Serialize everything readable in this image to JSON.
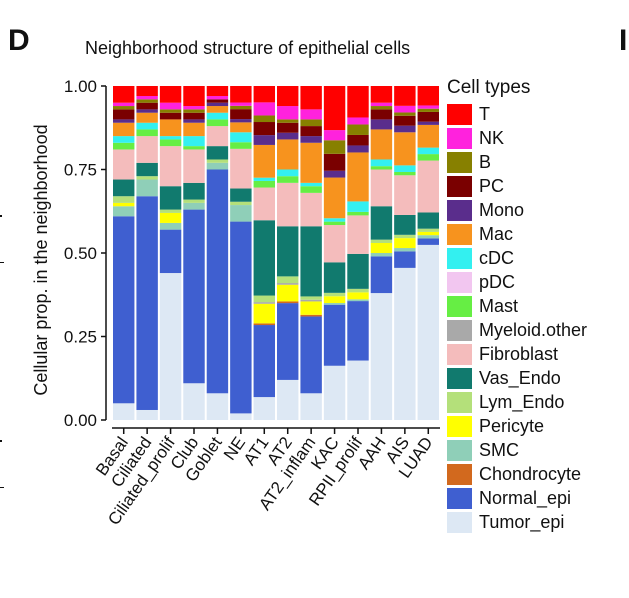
{
  "panel_label": "D",
  "next_panel_label": "I",
  "chart_data": {
    "type": "bar",
    "stacked": true,
    "title": "Neighborhood structure of epithelial cells",
    "xlabel": "",
    "ylabel": "Cellular prop. in the neighborhood",
    "ylim": [
      0,
      1
    ],
    "yticks": [
      "0.00",
      "0.25",
      "0.50",
      "0.75",
      "1.00"
    ],
    "legend_title": "Cell types",
    "legend_position": "right",
    "categories": [
      "Basal",
      "Ciliated",
      "Ciliated_prolif",
      "Club",
      "Goblet",
      "NE",
      "AT1",
      "AT2",
      "AT2_inflam",
      "KAC",
      "RPII_prolif",
      "AAH",
      "AIS",
      "LUAD"
    ],
    "series": [
      {
        "name": "Tumor_epi",
        "color": "#dde8f4",
        "values": [
          0.05,
          0.03,
          0.44,
          0.11,
          0.08,
          0.02,
          0.07,
          0.12,
          0.08,
          0.16,
          0.17,
          0.38,
          0.46,
          0.54
        ]
      },
      {
        "name": "Normal_epi",
        "color": "#3f5fd0",
        "values": [
          0.56,
          0.64,
          0.13,
          0.52,
          0.67,
          0.58,
          0.22,
          0.23,
          0.23,
          0.18,
          0.17,
          0.11,
          0.05,
          0.02
        ]
      },
      {
        "name": "Chondrocyte",
        "color": "#d2691e",
        "values": [
          0.0,
          0.0,
          0.0,
          0.0,
          0.0,
          0.0,
          0.005,
          0.005,
          0.005,
          0.0,
          0.0,
          0.0,
          0.0,
          0.0
        ]
      },
      {
        "name": "SMC",
        "color": "#8fcfb8",
        "values": [
          0.03,
          0.05,
          0.02,
          0.02,
          0.02,
          0.05,
          0.0,
          0.0,
          0.0,
          0.005,
          0.005,
          0.01,
          0.01,
          0.01
        ]
      },
      {
        "name": "Pericyte",
        "color": "#ffff00",
        "values": [
          0.01,
          0.0,
          0.03,
          0.0,
          0.0,
          0.0,
          0.06,
          0.05,
          0.04,
          0.02,
          0.02,
          0.03,
          0.03,
          0.01
        ]
      },
      {
        "name": "Myeloid.other",
        "color": "#a9a9a9",
        "values": [
          0.0,
          0.0,
          0.0,
          0.0,
          0.0,
          0.0,
          0.005,
          0.005,
          0.005,
          0.0,
          0.0,
          0.0,
          0.0,
          0.0
        ]
      },
      {
        "name": "Lym_Endo",
        "color": "#b4e07a",
        "values": [
          0.02,
          0.01,
          0.01,
          0.01,
          0.01,
          0.01,
          0.02,
          0.02,
          0.01,
          0.01,
          0.01,
          0.01,
          0.01,
          0.01
        ]
      },
      {
        "name": "Vas_Endo",
        "color": "#117a6e",
        "values": [
          0.05,
          0.04,
          0.07,
          0.05,
          0.04,
          0.04,
          0.23,
          0.15,
          0.21,
          0.09,
          0.1,
          0.1,
          0.06,
          0.05
        ]
      },
      {
        "name": "Fibroblast",
        "color": "#f4bcbc",
        "values": [
          0.09,
          0.08,
          0.12,
          0.1,
          0.06,
          0.12,
          0.1,
          0.13,
          0.1,
          0.11,
          0.11,
          0.11,
          0.12,
          0.16
        ]
      },
      {
        "name": "Mast",
        "color": "#66ee44",
        "values": [
          0.02,
          0.02,
          0.02,
          0.01,
          0.02,
          0.02,
          0.02,
          0.02,
          0.02,
          0.01,
          0.01,
          0.01,
          0.01,
          0.02
        ]
      },
      {
        "name": "pDC",
        "color": "#f2c6f0",
        "values": [
          0.0,
          0.0,
          0.0,
          0.0,
          0.0,
          0.0,
          0.0,
          0.0,
          0.0,
          0.0,
          0.0,
          0.0,
          0.0,
          0.0
        ]
      },
      {
        "name": "cDC",
        "color": "#33f0f0",
        "values": [
          0.02,
          0.02,
          0.01,
          0.03,
          0.02,
          0.03,
          0.01,
          0.02,
          0.01,
          0.01,
          0.03,
          0.02,
          0.02,
          0.02
        ]
      },
      {
        "name": "Mac",
        "color": "#f7931e",
        "values": [
          0.04,
          0.03,
          0.05,
          0.04,
          0.02,
          0.03,
          0.1,
          0.09,
          0.12,
          0.12,
          0.14,
          0.09,
          0.1,
          0.07
        ]
      },
      {
        "name": "Mono",
        "color": "#5a2d8c",
        "values": [
          0.01,
          0.01,
          0.0,
          0.01,
          0.01,
          0.01,
          0.03,
          0.02,
          0.02,
          0.02,
          0.02,
          0.03,
          0.02,
          0.01
        ]
      },
      {
        "name": "PC",
        "color": "#7a0000",
        "values": [
          0.03,
          0.02,
          0.02,
          0.02,
          0.01,
          0.03,
          0.04,
          0.03,
          0.03,
          0.05,
          0.03,
          0.03,
          0.03,
          0.03
        ]
      },
      {
        "name": "B",
        "color": "#878000",
        "values": [
          0.01,
          0.01,
          0.01,
          0.01,
          0.0,
          0.01,
          0.02,
          0.01,
          0.02,
          0.04,
          0.03,
          0.01,
          0.01,
          0.01
        ]
      },
      {
        "name": "NK",
        "color": "#ff22dd",
        "values": [
          0.01,
          0.01,
          0.02,
          0.01,
          0.01,
          0.01,
          0.04,
          0.04,
          0.03,
          0.03,
          0.02,
          0.01,
          0.02,
          0.01
        ]
      },
      {
        "name": "T",
        "color": "#ff0000",
        "values": [
          0.05,
          0.03,
          0.05,
          0.06,
          0.03,
          0.05,
          0.05,
          0.06,
          0.07,
          0.13,
          0.09,
          0.05,
          0.06,
          0.06
        ]
      }
    ],
    "legend_order": [
      "T",
      "NK",
      "B",
      "PC",
      "Mono",
      "Mac",
      "cDC",
      "pDC",
      "Mast",
      "Myeloid.other",
      "Fibroblast",
      "Vas_Endo",
      "Lym_Endo",
      "Pericyte",
      "SMC",
      "Chondrocyte",
      "Normal_epi",
      "Tumor_epi"
    ]
  }
}
